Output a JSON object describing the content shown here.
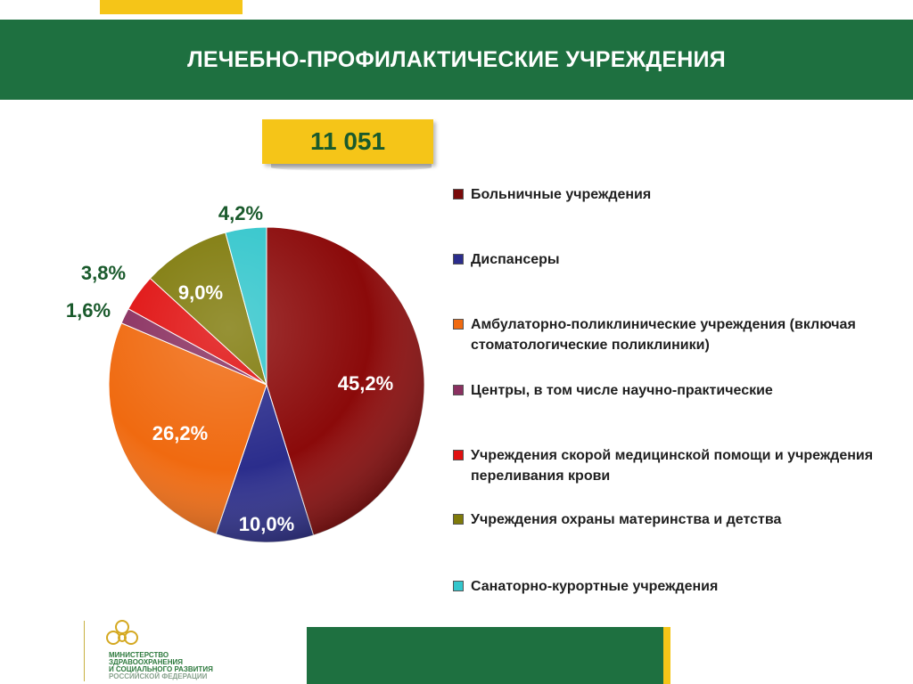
{
  "header": {
    "title": "ЛЕЧЕБНО-ПРОФИЛАКТИЧЕСКИЕ УЧРЕЖДЕНИЯ"
  },
  "total": {
    "value": "11 051"
  },
  "colors": {
    "brand_green": "#1e7040",
    "accent_yellow": "#f5c518",
    "label_green": "#1a5a2c"
  },
  "chart_data": {
    "type": "pie",
    "categories": [
      "Больничные учреждения",
      "Диспансеры",
      "Амбулаторно-поликлинические учреждения (включая стоматологические поликлиники)",
      "Центры, в том числе научно-практические",
      "Учреждения скорой медицинской помощи и учреждения переливания крови",
      "Учреждения охраны материнства и детства",
      "Санаторно-курортные учреждения"
    ],
    "values": [
      45.2,
      10.0,
      26.2,
      1.6,
      3.8,
      9.0,
      4.2
    ],
    "value_labels": [
      "45,2%",
      "10,0%",
      "26,2%",
      "1,6%",
      "3,8%",
      "9,0%",
      "4,2%"
    ],
    "colors": [
      "#8b0a0a",
      "#2b2d8c",
      "#f06a10",
      "#8a3060",
      "#e01010",
      "#7f7a0a",
      "#33c6cc"
    ],
    "legend_position": "right"
  },
  "legend": {
    "items": [
      {
        "label": "Больничные учреждения",
        "color": "#7a0a0a"
      },
      {
        "label": "Диспансеры",
        "color": "#2b2d8c"
      },
      {
        "label": "Амбулаторно-поликлинические учреждения (включая стоматологические поликлиники)",
        "color": "#f06a10"
      },
      {
        "label": "Центры, в том числе научно-практические",
        "color": "#8a3060"
      },
      {
        "label": "Учреждения скорой медицинской помощи и учреждения переливания крови",
        "color": "#e01010"
      },
      {
        "label": "Учреждения охраны материнства и детства",
        "color": "#7f7a0a"
      },
      {
        "label": "Санаторно-курортные учреждения",
        "color": "#33c6cc"
      }
    ]
  },
  "footer": {
    "logo_icon": "ministry-emblem-icon",
    "logo_lines": [
      "МИНИСТЕРСТВО",
      "ЗДРАВООХРАНЕНИЯ",
      "И СОЦИАЛЬНОГО РАЗВИТИЯ",
      "РОССИЙСКОЙ ФЕДЕРАЦИИ"
    ]
  }
}
